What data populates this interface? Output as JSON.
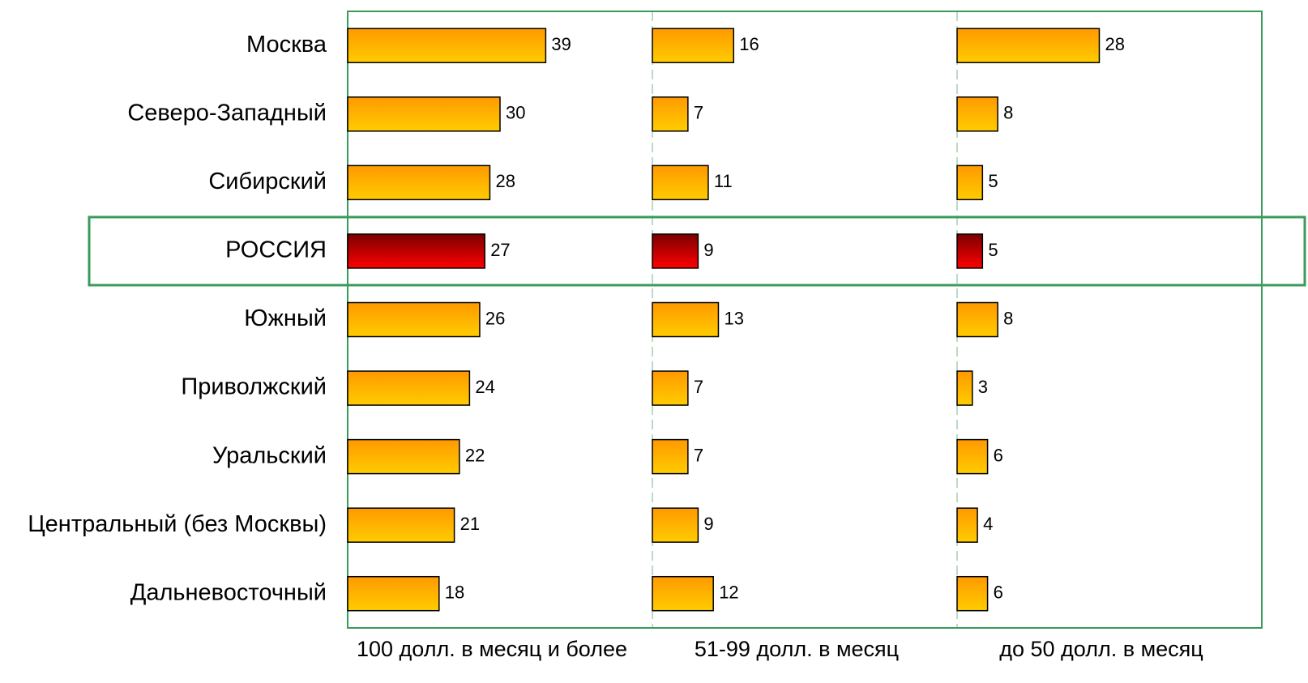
{
  "chart_data": {
    "type": "bar",
    "categories": [
      "Москва",
      "Северо-Западный",
      "Сибирский",
      "РОССИЯ",
      "Южный",
      "Приволжский",
      "Уральский",
      "Центральный (без Москвы)",
      "Дальневосточный"
    ],
    "series": [
      {
        "name": "100 долл. в месяц и более",
        "values": [
          39,
          30,
          28,
          27,
          26,
          24,
          22,
          21,
          18
        ]
      },
      {
        "name": "51-99 долл. в месяц",
        "values": [
          16,
          7,
          11,
          9,
          13,
          7,
          7,
          9,
          12
        ]
      },
      {
        "name": "до 50 долл. в месяц",
        "values": [
          28,
          8,
          5,
          5,
          8,
          3,
          6,
          4,
          6
        ]
      }
    ],
    "xlim": [
      0,
      60
    ],
    "highlight_category": "РОССИЯ",
    "bar_gradient": [
      "#ff9900",
      "#ffcc00"
    ],
    "highlight_gradient": [
      "#7a0000",
      "#ff0000"
    ],
    "frame_color": "#3a9a5c"
  }
}
